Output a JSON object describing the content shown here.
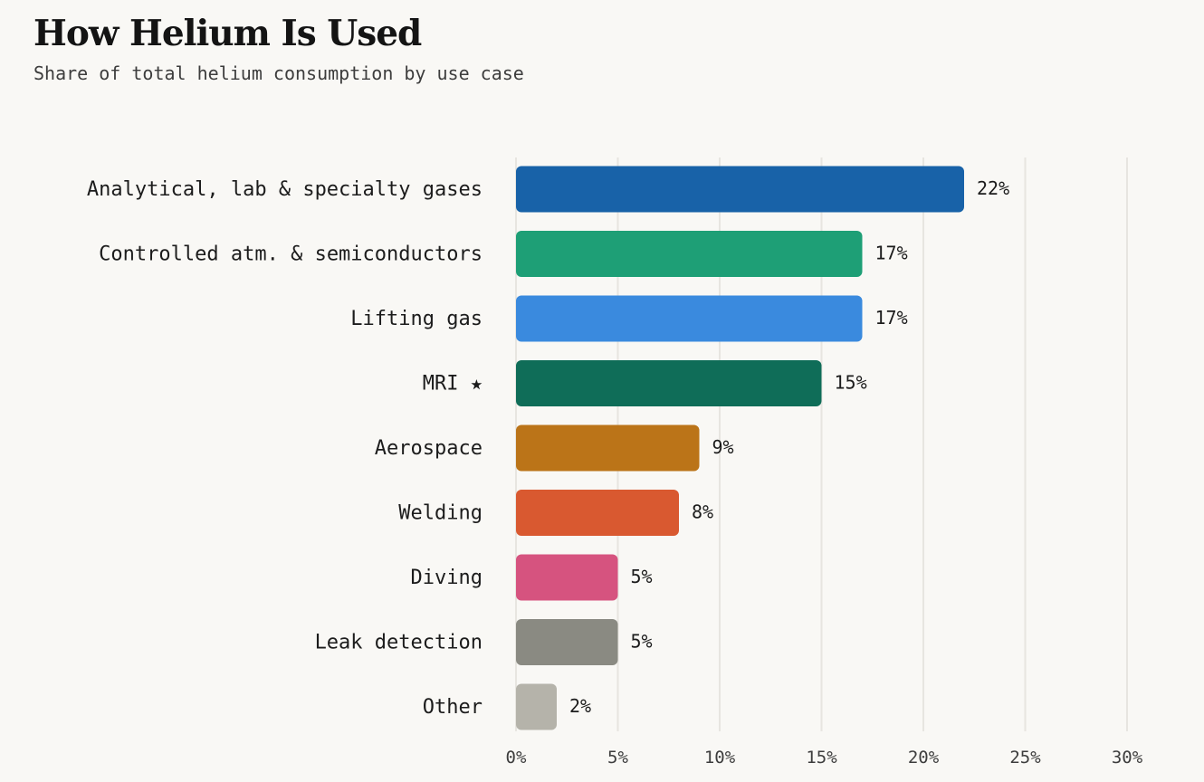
{
  "chart_data": {
    "type": "bar",
    "orientation": "horizontal",
    "title": "How Helium Is Used",
    "subtitle": "Share of total helium consumption by use case",
    "categories": [
      "Analytical, lab & specialty gases",
      "Controlled atm. & semiconductors",
      "Lifting gas",
      "MRI ★",
      "Aerospace",
      "Welding",
      "Diving",
      "Leak detection",
      "Other"
    ],
    "values": [
      22,
      17,
      17,
      15,
      9,
      8,
      5,
      5,
      2
    ],
    "value_labels": [
      "22%",
      "17%",
      "17%",
      "15%",
      "9%",
      "8%",
      "5%",
      "5%",
      "2%"
    ],
    "colors": [
      "#1862a8",
      "#1e9f76",
      "#3a8ade",
      "#0f6d58",
      "#bb7418",
      "#d95930",
      "#d6537f",
      "#8a8a82",
      "#b5b3aa"
    ],
    "xlim": [
      0,
      30
    ],
    "ticks": [
      0,
      5,
      10,
      15,
      20,
      25,
      30
    ],
    "tick_labels": [
      "0%",
      "5%",
      "10%",
      "15%",
      "20%",
      "25%",
      "30%"
    ],
    "grid": true,
    "xlabel": "",
    "ylabel": ""
  }
}
